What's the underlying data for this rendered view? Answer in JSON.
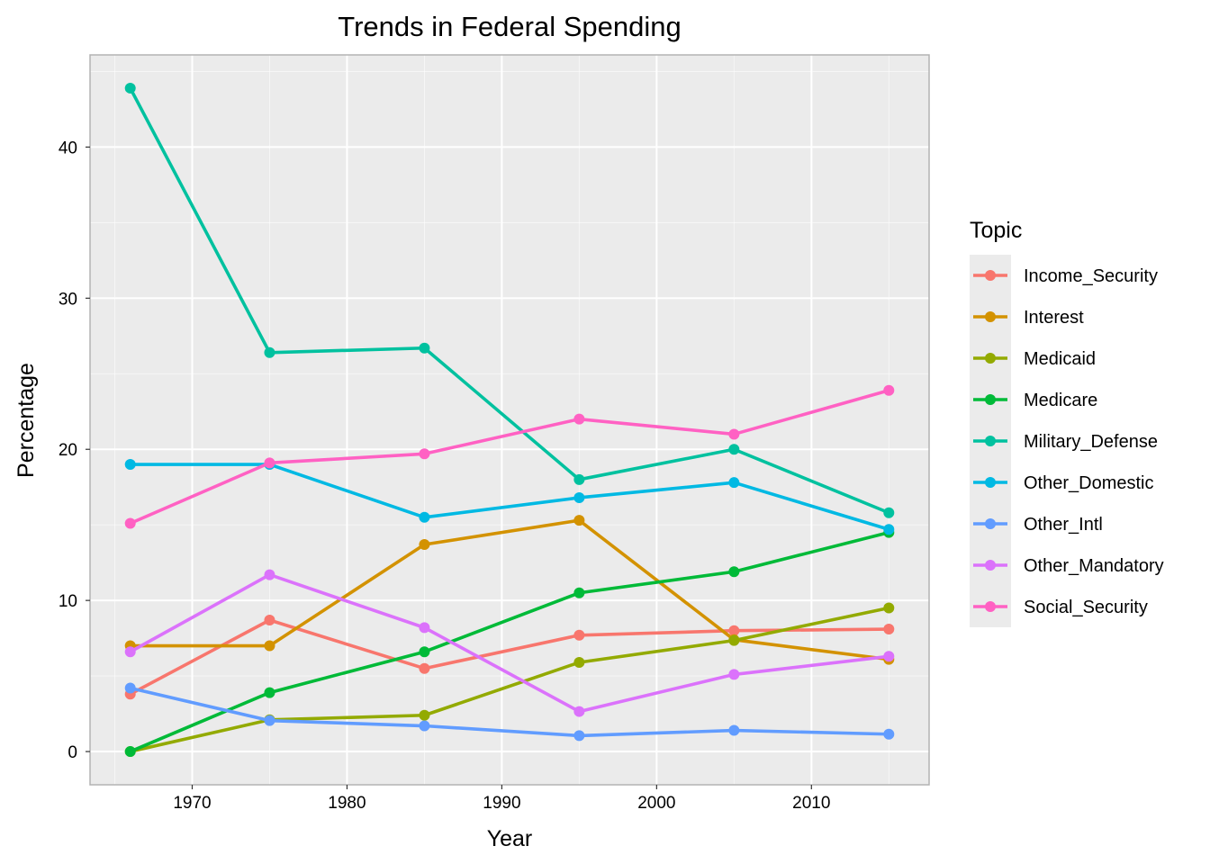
{
  "chart_data": {
    "type": "line",
    "title": "Trends in Federal Spending",
    "xlabel": "Year",
    "ylabel": "Percentage",
    "x": [
      1966,
      1975,
      1985,
      1995,
      2005,
      2015
    ],
    "xlim": [
      1963.4,
      2017.6
    ],
    "ylim": [
      -2.2,
      46.1
    ],
    "xticks": [
      1970,
      1980,
      1990,
      2000,
      2010
    ],
    "yticks": [
      0,
      10,
      20,
      30,
      40
    ],
    "xtick_labels": [
      "1970",
      "1980",
      "1990",
      "2000",
      "2010"
    ],
    "ytick_labels": [
      "0",
      "10",
      "20",
      "30",
      "40"
    ],
    "grid": true,
    "legend": {
      "title": "Topic",
      "placement": "right"
    },
    "series": [
      {
        "name": "Income_Security",
        "color": "#F8766D",
        "values": [
          3.8,
          8.7,
          5.5,
          7.7,
          8.0,
          8.1
        ]
      },
      {
        "name": "Interest",
        "color": "#D39200",
        "values": [
          7.0,
          7.0,
          13.7,
          15.3,
          7.4,
          6.1
        ]
      },
      {
        "name": "Medicaid",
        "color": "#93AA00",
        "values": [
          0.0,
          2.1,
          2.4,
          5.9,
          7.35,
          9.5
        ]
      },
      {
        "name": "Medicare",
        "color": "#00BA38",
        "values": [
          0.0,
          3.9,
          6.6,
          10.5,
          11.9,
          14.5
        ]
      },
      {
        "name": "Military_Defense",
        "color": "#00C19F",
        "values": [
          43.9,
          26.4,
          26.7,
          18.0,
          20.0,
          15.8
        ]
      },
      {
        "name": "Other_Domestic",
        "color": "#00B9E3",
        "values": [
          19.0,
          19.0,
          15.5,
          16.8,
          17.8,
          14.7
        ]
      },
      {
        "name": "Other_Intl",
        "color": "#619CFF",
        "values": [
          4.2,
          2.05,
          1.7,
          1.05,
          1.4,
          1.15
        ]
      },
      {
        "name": "Other_Mandatory",
        "color": "#DB72FB",
        "values": [
          6.6,
          11.7,
          8.2,
          2.65,
          5.1,
          6.3
        ]
      },
      {
        "name": "Social_Security",
        "color": "#FF61C3",
        "values": [
          15.1,
          19.1,
          19.7,
          22.0,
          21.0,
          23.9
        ]
      }
    ]
  },
  "colors": {
    "panel_background": "#EBEBEB",
    "grid_major": "#FFFFFF",
    "panel_border": "#B3B3B3",
    "legend_key_background": "#EBEBEB"
  }
}
